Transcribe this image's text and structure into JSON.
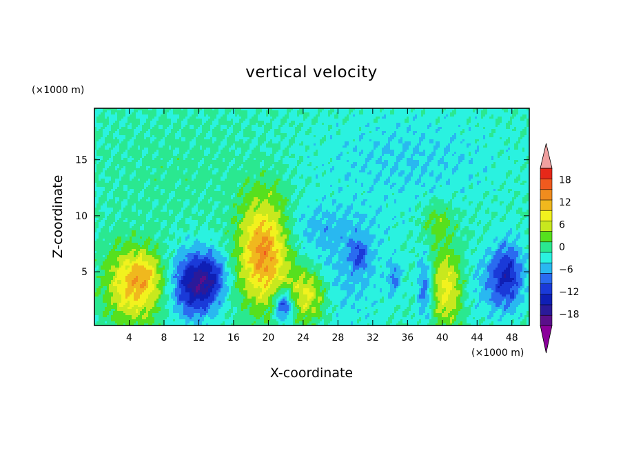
{
  "chart_data": {
    "type": "heatmap",
    "title": "vertical velocity",
    "xlabel": "X-coordinate",
    "ylabel": "Z-coordinate",
    "x_unit_label": "(×1000 m)",
    "y_unit_label": "(×1000 m)",
    "xlim": [
      0,
      50
    ],
    "ylim": [
      0.2,
      19.6
    ],
    "x_ticks": [
      4,
      8,
      12,
      16,
      20,
      24,
      28,
      32,
      36,
      40,
      44,
      48
    ],
    "y_ticks": [
      5,
      10,
      15
    ],
    "colorbar": {
      "levels": [
        -21,
        -18,
        -15,
        -12,
        -9,
        -6,
        -3,
        0,
        3,
        6,
        9,
        12,
        15,
        18,
        21
      ],
      "tick_values": [
        -18,
        -12,
        -6,
        0,
        6,
        12,
        18
      ],
      "tick_labels": [
        "−18",
        "−12",
        "−6",
        "0",
        "6",
        "12",
        "18"
      ],
      "colors": [
        "#5a0f8a",
        "#2a1a9a",
        "#0f1fb5",
        "#1a3ad8",
        "#2a6bf0",
        "#29b8f0",
        "#2af2e0",
        "#2ae890",
        "#56e01e",
        "#c8e81e",
        "#f2f21e",
        "#f0b81e",
        "#f08c1e",
        "#f05a1e",
        "#e62819"
      ],
      "under_color": "#8a009a",
      "over_color": "#f0a0a0"
    },
    "features": [
      {
        "x": 4.5,
        "z": 3.8,
        "sx": 2.2,
        "sz": 2.3,
        "w": 13
      },
      {
        "x": 6.0,
        "z": 4.8,
        "sx": 1.2,
        "sz": 1.2,
        "w": 4
      },
      {
        "x": 11.5,
        "z": 3.8,
        "sx": 1.8,
        "sz": 2.0,
        "w": -15
      },
      {
        "x": 13.5,
        "z": 4.6,
        "sx": 1.3,
        "sz": 1.5,
        "w": -7
      },
      {
        "x": 19.5,
        "z": 6.8,
        "sx": 2.0,
        "sz": 3.3,
        "w": 17
      },
      {
        "x": 21.8,
        "z": 2.0,
        "sx": 0.8,
        "sz": 1.0,
        "w": -13
      },
      {
        "x": 24.5,
        "z": 3.0,
        "sx": 1.7,
        "sz": 1.8,
        "w": 11
      },
      {
        "x": 28.0,
        "z": 4.5,
        "sx": 4.0,
        "sz": 3.0,
        "w": -4
      },
      {
        "x": 30.5,
        "z": 6.5,
        "sx": 0.8,
        "sz": 1.0,
        "w": -7
      },
      {
        "x": 34.5,
        "z": 4.5,
        "sx": 0.5,
        "sz": 1.0,
        "w": -6
      },
      {
        "x": 38.0,
        "z": 3.5,
        "sx": 0.6,
        "sz": 2.0,
        "w": -8
      },
      {
        "x": 40.5,
        "z": 3.5,
        "sx": 1.3,
        "sz": 2.5,
        "w": 10
      },
      {
        "x": 39.5,
        "z": 9.4,
        "sx": 1.2,
        "sz": 1.2,
        "w": 5
      },
      {
        "x": 47.5,
        "z": 4.8,
        "sx": 1.3,
        "sz": 2.0,
        "w": -11
      },
      {
        "x": 45.5,
        "z": 3.8,
        "sx": 2.0,
        "sz": 2.0,
        "w": -4
      },
      {
        "x": 26.0,
        "z": 9.0,
        "sx": 5.0,
        "sz": 1.5,
        "w": -3
      },
      {
        "x": 36.0,
        "z": 15.0,
        "sx": 8.0,
        "sz": 3.0,
        "w": -3
      },
      {
        "x": 10.0,
        "z": 14.0,
        "sx": 6.0,
        "sz": 3.0,
        "w": 1
      }
    ]
  }
}
